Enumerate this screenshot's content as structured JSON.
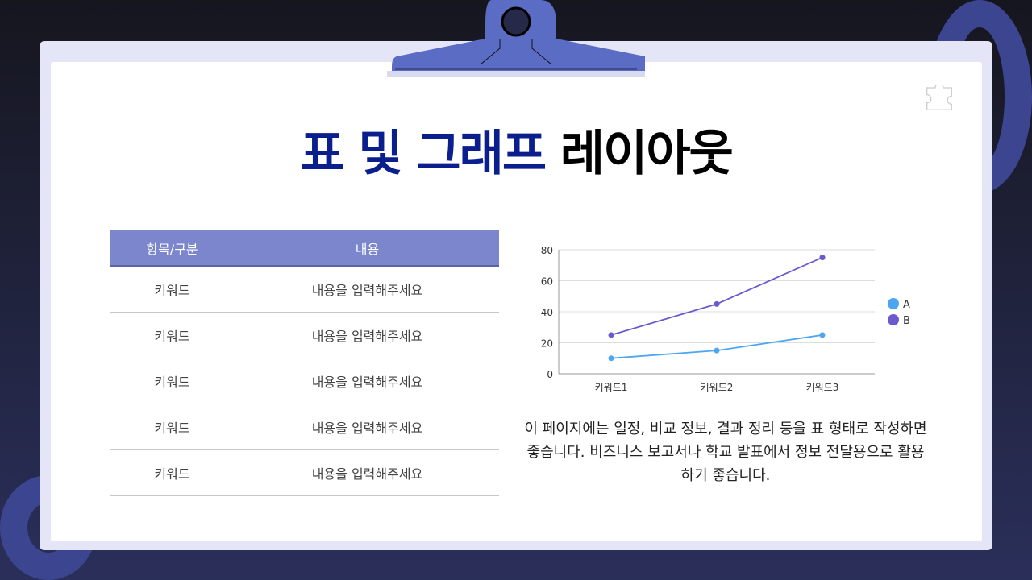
{
  "title": {
    "part1": "표 및 그래프",
    "part2": "레이아웃"
  },
  "table": {
    "headers": [
      "항목/구분",
      "내용"
    ],
    "rows": [
      [
        "키워드",
        "내용을 입력해주세요"
      ],
      [
        "키워드",
        "내용을 입력해주세요"
      ],
      [
        "키워드",
        "내용을 입력해주세요"
      ],
      [
        "키워드",
        "내용을 입력해주세요"
      ],
      [
        "키워드",
        "내용을 입력해주세요"
      ]
    ]
  },
  "description": "이 페이지에는 일정, 비교 정보, 결과 정리 등을 표 형태로 작성하면 좋습니다. 비즈니스 보고서나 학교 발표에서 정보 전달용으로 활용하기 좋습니다.",
  "chart_data": {
    "type": "line",
    "categories": [
      "키워드1",
      "키워드2",
      "키워드3"
    ],
    "series": [
      {
        "name": "A",
        "values": [
          10,
          15,
          25
        ],
        "color": "#4da6f0"
      },
      {
        "name": "B",
        "values": [
          25,
          45,
          75
        ],
        "color": "#6a5acd"
      }
    ],
    "ylim": [
      0,
      80
    ],
    "yticks": [
      0,
      20,
      40,
      60,
      80
    ],
    "grid": true,
    "legend": "right"
  },
  "colors": {
    "accent": "#5b6cc4",
    "title_blue": "#0b1e8e",
    "table_header": "#7b86cc"
  }
}
